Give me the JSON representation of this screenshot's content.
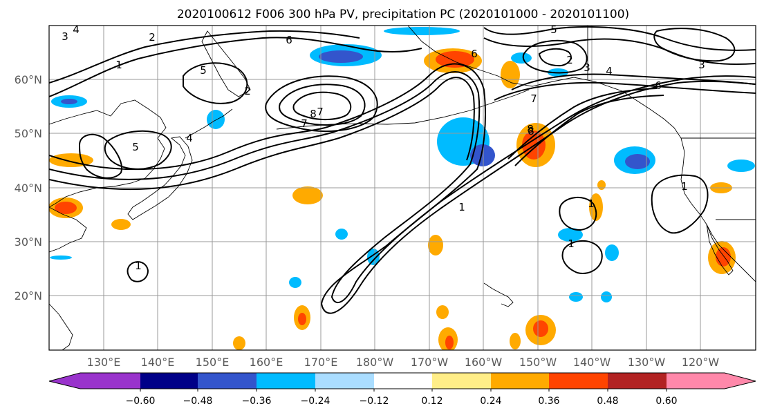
{
  "title": "2020100612 F006 300 hPa PV, precipitation PC (2020101000 - 2020101100)",
  "map": {
    "lon_labels": [
      "130°E",
      "140°E",
      "150°E",
      "160°E",
      "170°E",
      "180°W",
      "170°W",
      "160°W",
      "150°W",
      "140°W",
      "130°W",
      "120°W"
    ],
    "lat_labels": [
      "60°N",
      "50°N",
      "40°N",
      "30°N",
      "20°N"
    ],
    "lon_ticks_deg": [
      130,
      140,
      150,
      160,
      170,
      180,
      190,
      200,
      210,
      220,
      230,
      240
    ],
    "lat_ticks_deg": [
      60,
      50,
      40,
      30,
      20
    ],
    "lon_range_deg": [
      120,
      250
    ],
    "lat_range_deg": [
      10,
      70
    ],
    "gridlines": true,
    "contour_field": "300 hPa PV",
    "shaded_field": "precipitation PC",
    "contour_labels": [
      "1",
      "2",
      "3",
      "4",
      "5",
      "6",
      "7",
      "8",
      "1",
      "2",
      "3",
      "4",
      "5",
      "6",
      "7",
      "8",
      "1",
      "2",
      "3",
      "4",
      "5",
      "6",
      "7",
      "8",
      "1",
      "1",
      "1"
    ]
  },
  "colorbar": {
    "tick_labels": [
      "−0.60",
      "−0.48",
      "−0.36",
      "−0.24",
      "−0.12",
      "0.12",
      "0.24",
      "0.36",
      "0.48",
      "0.60"
    ],
    "bounds": [
      -0.6,
      -0.48,
      -0.36,
      -0.24,
      -0.12,
      0.12,
      0.24,
      0.36,
      0.48,
      0.6
    ],
    "colors": [
      "#9933cc",
      "#000088",
      "#3355cc",
      "#00bbff",
      "#aaddff",
      "#ffffff",
      "#ffee88",
      "#ffaa00",
      "#ff4400",
      "#b22222",
      "#ff88aa"
    ],
    "extend": "both"
  }
}
